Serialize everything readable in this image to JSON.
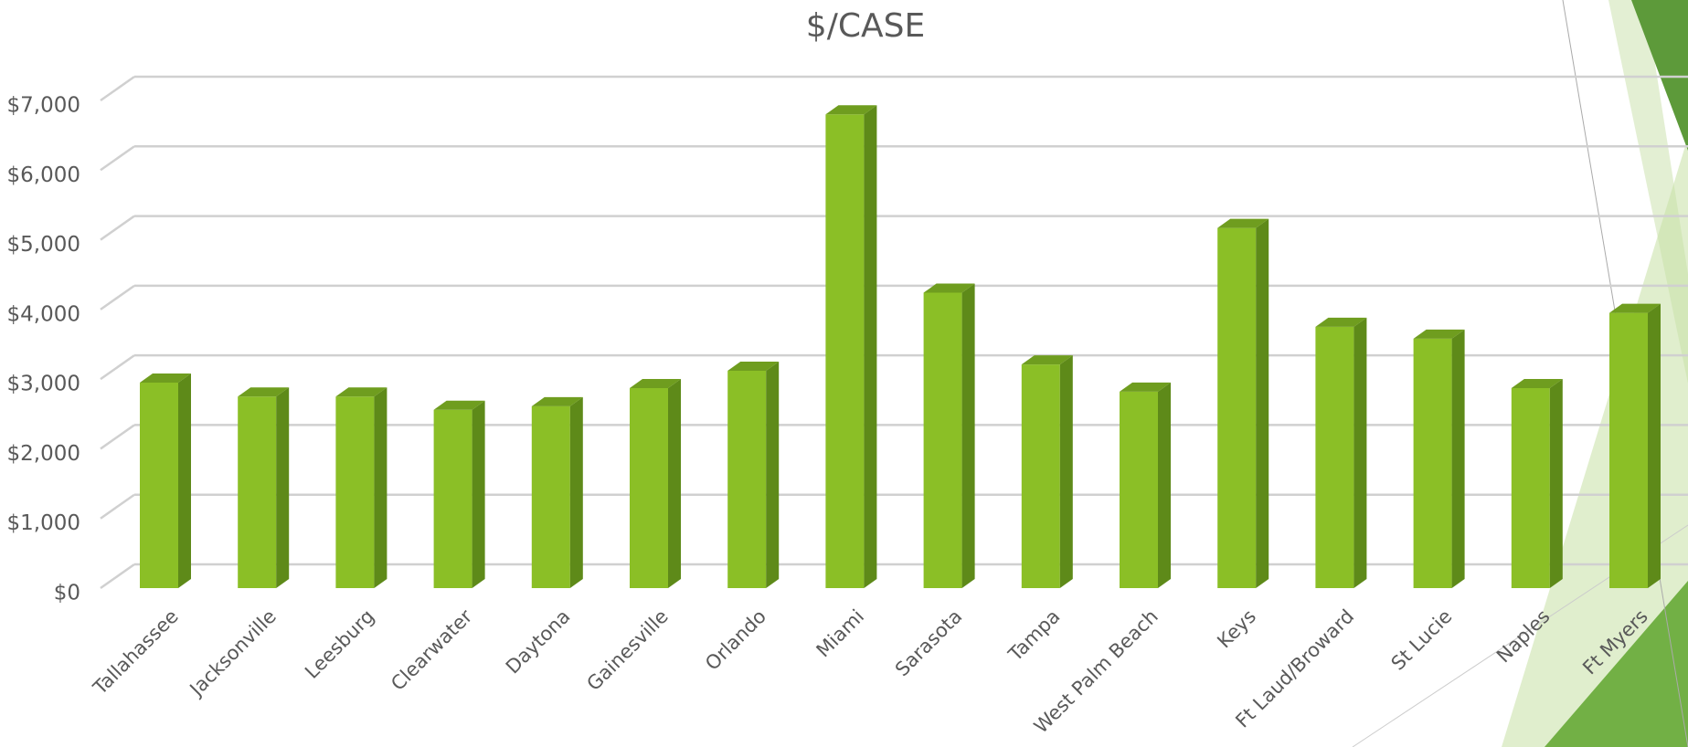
{
  "chart_data": {
    "type": "bar3d",
    "title": "$/CASE",
    "categories": [
      "Tallahassee",
      "Jacksonville",
      "Leesburg",
      "Clearwater",
      "Daytona",
      "Gainesville",
      "Orlando",
      "Miami",
      "Sarasota",
      "Tampa",
      "West Palm Beach",
      "Keys",
      "Ft Laud/Broward",
      "St Lucie",
      "Naples",
      "Ft Myers"
    ],
    "values": [
      2950,
      2750,
      2750,
      2560,
      2610,
      2870,
      3120,
      6800,
      4240,
      3210,
      2820,
      5170,
      3750,
      3580,
      2870,
      3950
    ],
    "color": "#8bbf26",
    "ylim": [
      0,
      7000
    ],
    "yticks": [
      {
        "value": 0,
        "label": "$0"
      },
      {
        "value": 1000,
        "label": "$1,000"
      },
      {
        "value": 2000,
        "label": "$2,000"
      },
      {
        "value": 3000,
        "label": "$3,000"
      },
      {
        "value": 4000,
        "label": "$4,000"
      },
      {
        "value": 5000,
        "label": "$5,000"
      },
      {
        "value": 6000,
        "label": "$6,000"
      },
      {
        "value": 7000,
        "label": "$7,000"
      }
    ],
    "grid": true
  }
}
